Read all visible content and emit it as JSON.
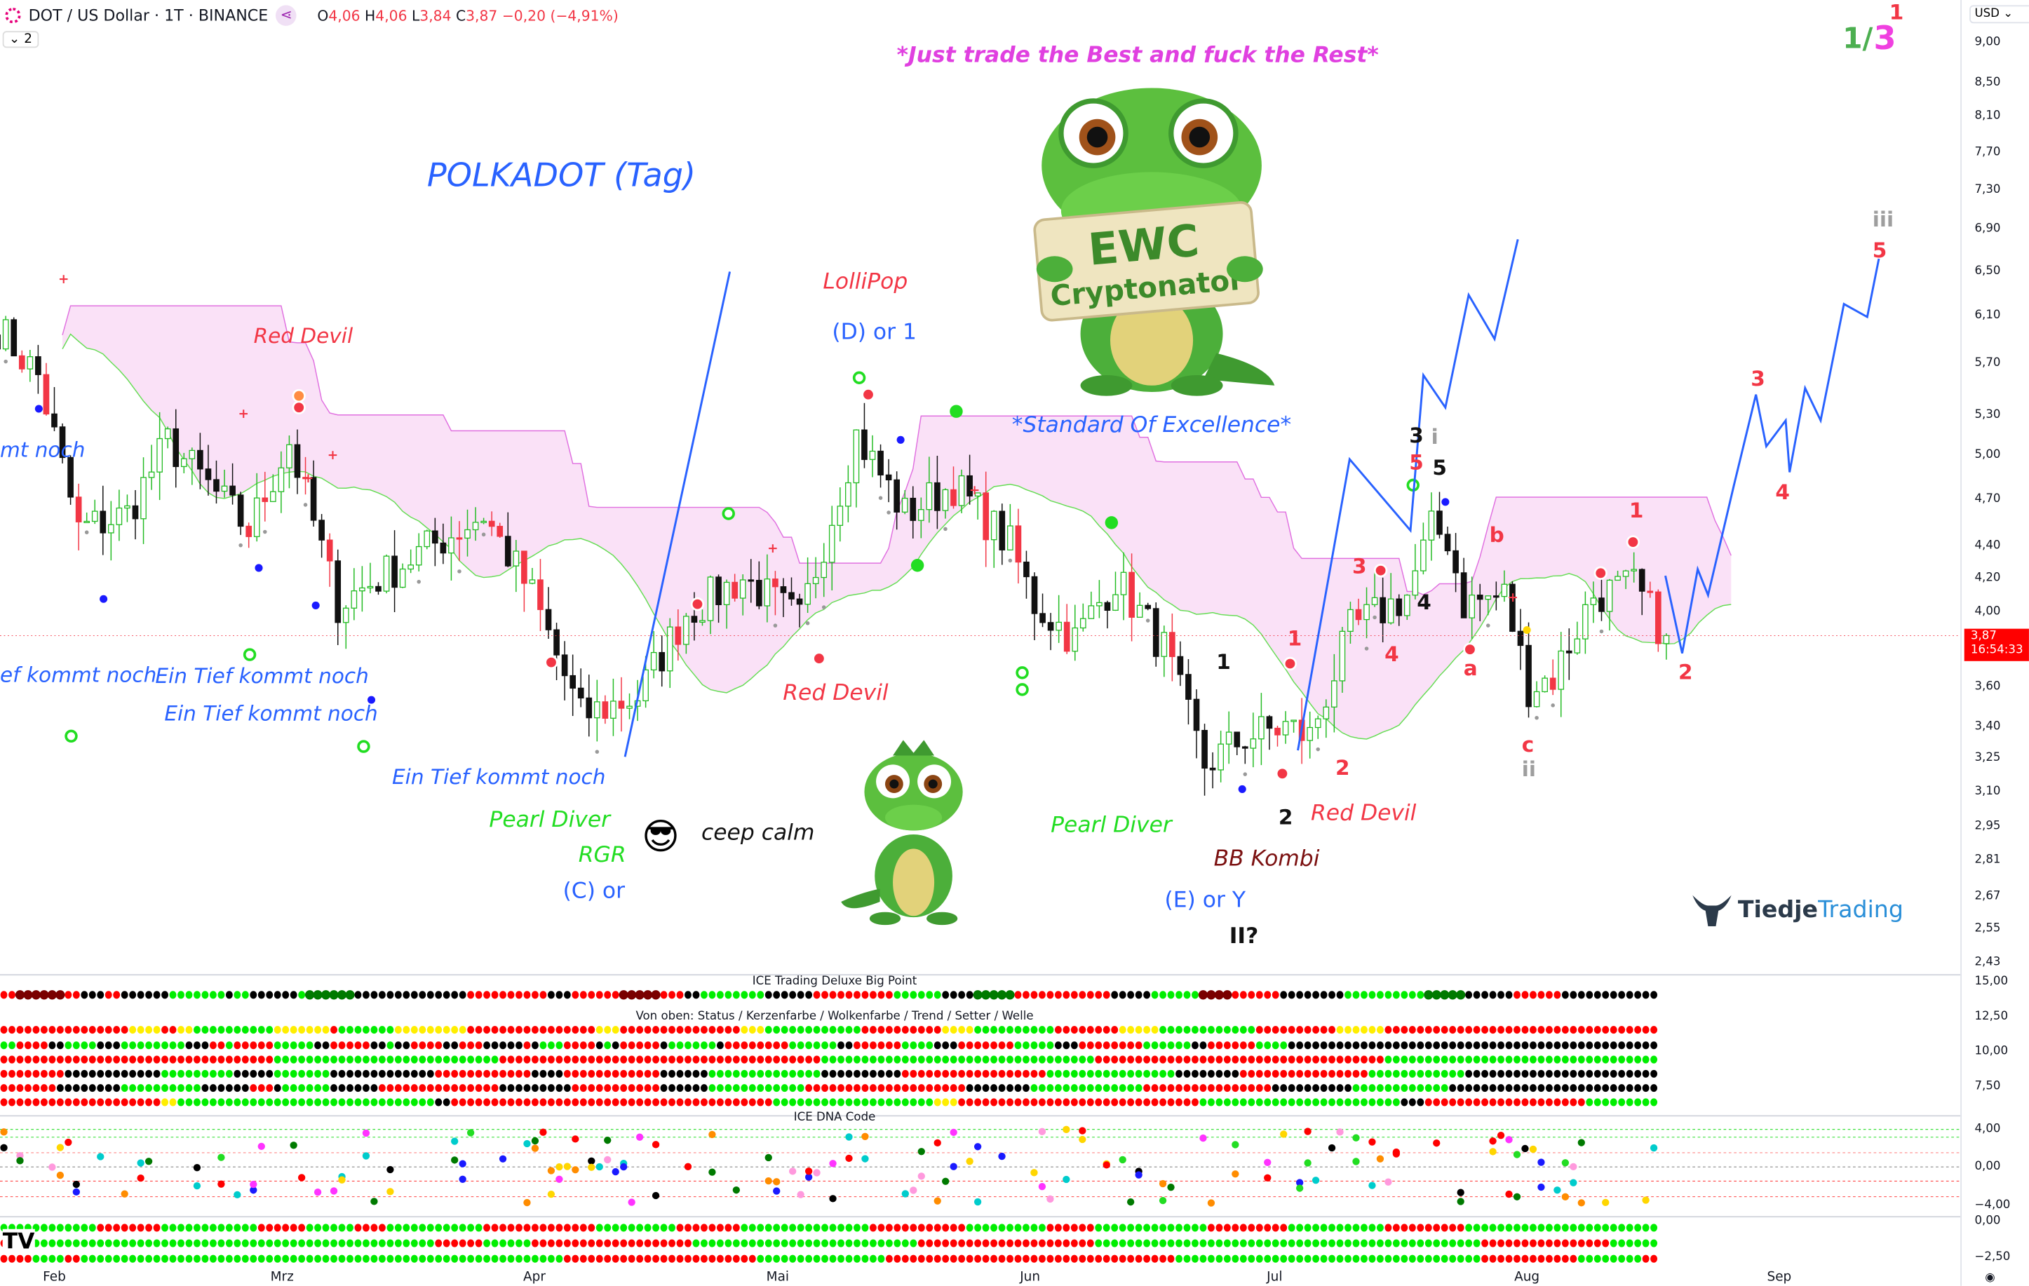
{
  "header": {
    "symbol": "DOT / US Dollar · 1T · BINANCE",
    "ohlc": {
      "o_label": "O",
      "o": "4,06",
      "h_label": "H",
      "h": "4,06",
      "l_label": "L",
      "l": "3,84",
      "c_label": "C",
      "c": "3,87",
      "change": "−0,20 (−4,91%)"
    },
    "collapse_count": "2"
  },
  "price_axis": {
    "currency": "USD",
    "ticks": [
      "9,00",
      "8,50",
      "8,10",
      "7,70",
      "7,30",
      "6,90",
      "6,50",
      "6,10",
      "5,70",
      "5,30",
      "5,00",
      "4,70",
      "4,40",
      "4,20",
      "4,00",
      "3,60",
      "3,40",
      "3,25",
      "3,10",
      "2,95",
      "2,81",
      "2,67",
      "2,55",
      "2,43"
    ],
    "last_price": "3,87",
    "countdown": "16:54:33",
    "scale": "log"
  },
  "panes": {
    "big_point": {
      "title": "ICE Trading Deluxe Big Point",
      "subtitle": "Von oben: Status / Kerzenfarbe / Wolkenfarbe / Trend / Setter / Welle",
      "ticks": [
        "15,00",
        "12,50",
        "10,00",
        "7,50"
      ]
    },
    "dna": {
      "title": "ICE DNA Code",
      "ticks": [
        "4,00",
        "0,00",
        "−4,00"
      ]
    },
    "momentum": {
      "ticks": [
        "0,00",
        "−2,50"
      ]
    }
  },
  "time_axis": [
    "Feb",
    "Mrz",
    "Apr",
    "Mai",
    "Jun",
    "Jul",
    "Aug",
    "Sep"
  ],
  "annotations": {
    "slogan": "*Just trade the Best and fuck the Rest*",
    "title": "POLKADOT (Tag)",
    "lollipop": "LolliPop",
    "d_or_1": "(D) or 1",
    "standard": "*Standard Of Excellence*",
    "red_devil_1": "Red Devil",
    "mt_noch": "mt noch",
    "ef_kommt": "ef kommt noch",
    "tief_1": "Ein Tief kommt noch",
    "tief_2": "Ein Tief kommt noch",
    "tief_3": "Ein Tief kommt noch",
    "pearl_1": "Pearl Diver",
    "rgr": "RGR",
    "c_or": "(C) or",
    "keep_calm": "ceep calm",
    "emoji": "😎",
    "red_devil_2": "Red Devil",
    "pearl_2": "Pearl Diver",
    "bb_kombi": "BB Kombi",
    "e_or_y": "(E) or Y",
    "ii_q": "II?",
    "red_devil_3": "Red Devil",
    "wave_labels": [
      "1",
      "2",
      "1",
      "2",
      "3",
      "4",
      "3",
      "5",
      "i",
      "5",
      "4",
      "b",
      "a",
      "c",
      "ii",
      "1",
      "2",
      "3",
      "4",
      "5",
      "iii"
    ],
    "count_green": "1/",
    "count_magenta": "3",
    "count_red": "1"
  },
  "logo": {
    "brand_a": "Tiedje",
    "brand_b": "Trading",
    "mascot_sign_1": "EWC",
    "mascot_sign_2": "Cryptonator"
  },
  "colors": {
    "accent_blue": "#2962ff",
    "red": "#f23645",
    "green": "#22dd22",
    "magenta": "#e040e0",
    "cloud": "#f9dcf6",
    "price_label": "#ff0000"
  },
  "chart_data": {
    "type": "candlestick",
    "scale": "log",
    "ylim": [
      2.43,
      9.0
    ],
    "approx_close_path": [
      [
        "Jan 25",
        6.0
      ],
      [
        "Jan 30",
        5.6
      ],
      [
        "Feb 4",
        4.5
      ],
      [
        "Feb 10",
        4.6
      ],
      [
        "Feb 15",
        5.1
      ],
      [
        "Feb 25",
        4.5
      ],
      [
        "Mar 2",
        5.1
      ],
      [
        "Mar 8",
        4.05
      ],
      [
        "Mar 13",
        4.2
      ],
      [
        "Mar 26",
        4.6
      ],
      [
        "Apr 1",
        4.1
      ],
      [
        "Apr 7",
        3.45
      ],
      [
        "Apr 14",
        3.55
      ],
      [
        "Apr 20",
        4.0
      ],
      [
        "Apr 27",
        4.2
      ],
      [
        "May 4",
        3.95
      ],
      [
        "May 11",
        5.15
      ],
      [
        "May 17",
        4.6
      ],
      [
        "May 23",
        4.8
      ],
      [
        "May 30",
        4.4
      ],
      [
        "Jun 2",
        4.05
      ],
      [
        "Jun 7",
        3.85
      ],
      [
        "Jun 12",
        4.2
      ],
      [
        "Jun 18",
        3.8
      ],
      [
        "Jun 23",
        3.22
      ],
      [
        "Jun 28",
        3.35
      ],
      [
        "Jul 3",
        3.4
      ],
      [
        "Jul 6",
        3.35
      ],
      [
        "Jul 11",
        3.9
      ],
      [
        "Jul 18",
        4.1
      ],
      [
        "Jul 21",
        4.5
      ],
      [
        "Jul 23",
        4.45
      ],
      [
        "Jul 25",
        4.05
      ],
      [
        "Jul 30",
        4.1
      ],
      [
        "Aug 2",
        3.6
      ],
      [
        "Aug 5",
        3.65
      ],
      [
        "Aug 10",
        4.1
      ],
      [
        "Aug 15",
        4.15
      ],
      [
        "Aug 19",
        3.87
      ]
    ],
    "indicator_rows": {
      "big_point": "r2 D6 r2 k3 r2 k6 g7 k1 g2 k6 g1 G6 k14 r10 k3 r6 D5 r3 k2 g8 k6 r10 g6 k4 G5 r12 k5 g6 D4 r6 k8 g10 G5 k6 r6 k6",
      "status": "r16 y4 r2 y2 g10 y7 r1 g7 y9 r16 y3 r15 y3 g12 r10 y4 g10 r8 y5 g12 r10 y6 r4",
      "candle": "g2 r4 k2 g4 k3 g8 k3 r2 g1 r5 g5 k2 r5 k2 g1 k2 r4 k2 r3 k5 r1 k1 g3 r4 k1 g1 k1 r5 k1 g6 k1 r8 g6 k2 r6 g4 k3 r7 g5 k3 r8 g6 k2 r6 g4 k2",
      "cloud": "r34 g28 r40 g34 r36 g34",
      "trend": "r8 k12 g9 k5 g7 k13 r12 k4 r12 k6 g14 k10 r18 g16 k8 r16 g12 k6",
      "setter": "r7 k8 g10 k6 r3 k1 g6 k6 r15 k9 r11 k6 g12 r20 k8 g14 r16 k10 g12 k5",
      "welle": "r20 y2 g32 k2 r40 g20 y3 r30 g25 k3 r20 g9",
      "momentum_1": "g12 r8 g12 r6 g6 r4 g12 r14 g10 r8 g16 r12 g10 r6 g14 r10 g12 r10 g14",
      "momentum_2": "r2 g52 r6 g6 r20 g28 r22 g48 r16 g6 r10 g4",
      "momentum_3": "r4 g4 r2 g60 r24 g16 r36 g38 r12 g8 r10 g10"
    }
  }
}
